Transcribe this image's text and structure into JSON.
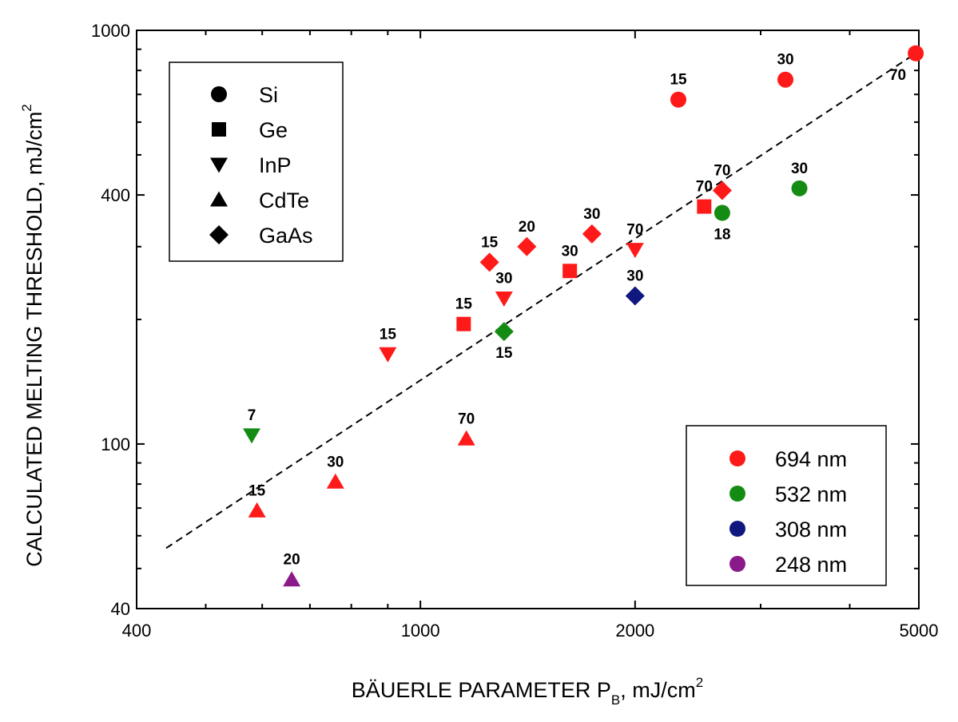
{
  "chart_data": {
    "type": "scatter",
    "xscale": "log",
    "yscale": "log",
    "xlim": [
      400,
      5000
    ],
    "ylim": [
      40,
      1000
    ],
    "xticks": [
      400,
      1000,
      2000,
      5000
    ],
    "yticks": [
      40,
      100,
      400,
      1000
    ],
    "xlabel_main": "BÄUERLE PARAMETER P",
    "xlabel_sub": "B",
    "xlabel_tail": ", mJ/cm",
    "xlabel_sup": "2",
    "ylabel_main": "CALCULATED MELTING THRESHOLD, mJ/cm",
    "ylabel_sup": "2",
    "material_legend": [
      {
        "label": "Si",
        "marker": "circle"
      },
      {
        "label": "Ge",
        "marker": "square"
      },
      {
        "label": "InP",
        "marker": "triangle-down"
      },
      {
        "label": "CdTe",
        "marker": "triangle-up"
      },
      {
        "label": "GaAs",
        "marker": "diamond"
      }
    ],
    "wavelength_legend": [
      {
        "label": "694 nm",
        "color": "#ff1a1a"
      },
      {
        "label": "532 nm",
        "color": "#148c14"
      },
      {
        "label": "308 nm",
        "color": "#101880"
      },
      {
        "label": "248 nm",
        "color": "#8a1a8a"
      }
    ],
    "points": [
      {
        "x": 4950,
        "y": 880,
        "marker": "circle",
        "color": "#ff1a1a",
        "label": "70",
        "label_pos": "below-left"
      },
      {
        "x": 3250,
        "y": 760,
        "marker": "circle",
        "color": "#ff1a1a",
        "label": "30",
        "label_pos": "above"
      },
      {
        "x": 2300,
        "y": 680,
        "marker": "circle",
        "color": "#ff1a1a",
        "label": "15",
        "label_pos": "above"
      },
      {
        "x": 3400,
        "y": 415,
        "marker": "circle",
        "color": "#148c14",
        "label": "30",
        "label_pos": "above"
      },
      {
        "x": 2650,
        "y": 362,
        "marker": "circle",
        "color": "#148c14",
        "label": "18",
        "label_pos": "below"
      },
      {
        "x": 2500,
        "y": 375,
        "marker": "square",
        "color": "#ff1a1a",
        "label": "70",
        "label_pos": "above"
      },
      {
        "x": 1620,
        "y": 262,
        "marker": "square",
        "color": "#ff1a1a",
        "label": "30",
        "label_pos": "above"
      },
      {
        "x": 1150,
        "y": 195,
        "marker": "square",
        "color": "#ff1a1a",
        "label": "15",
        "label_pos": "above"
      },
      {
        "x": 2000,
        "y": 295,
        "marker": "triangle-down",
        "color": "#ff1a1a",
        "label": "70",
        "label_pos": "above"
      },
      {
        "x": 1310,
        "y": 225,
        "marker": "triangle-down",
        "color": "#ff1a1a",
        "label": "30",
        "label_pos": "above"
      },
      {
        "x": 900,
        "y": 165,
        "marker": "triangle-down",
        "color": "#ff1a1a",
        "label": "15",
        "label_pos": "above"
      },
      {
        "x": 580,
        "y": 105,
        "marker": "triangle-down",
        "color": "#148c14",
        "label": "7",
        "label_pos": "above"
      },
      {
        "x": 1160,
        "y": 103,
        "marker": "triangle-up",
        "color": "#ff1a1a",
        "label": "70",
        "label_pos": "above"
      },
      {
        "x": 760,
        "y": 81,
        "marker": "triangle-up",
        "color": "#ff1a1a",
        "label": "30",
        "label_pos": "above"
      },
      {
        "x": 590,
        "y": 69,
        "marker": "triangle-up",
        "color": "#ff1a1a",
        "label": "15",
        "label_pos": "above"
      },
      {
        "x": 660,
        "y": 47,
        "marker": "triangle-up",
        "color": "#8a1a8a",
        "label": "20",
        "label_pos": "above"
      },
      {
        "x": 2650,
        "y": 410,
        "marker": "diamond",
        "color": "#ff1a1a",
        "label": "70",
        "label_pos": "above"
      },
      {
        "x": 1740,
        "y": 322,
        "marker": "diamond",
        "color": "#ff1a1a",
        "label": "30",
        "label_pos": "above"
      },
      {
        "x": 1410,
        "y": 300,
        "marker": "diamond",
        "color": "#ff1a1a",
        "label": "20",
        "label_pos": "above"
      },
      {
        "x": 1250,
        "y": 275,
        "marker": "diamond",
        "color": "#ff1a1a",
        "label": "15",
        "label_pos": "above"
      },
      {
        "x": 2000,
        "y": 228,
        "marker": "diamond",
        "color": "#101880",
        "label": "30",
        "label_pos": "above"
      },
      {
        "x": 1310,
        "y": 187,
        "marker": "diamond",
        "color": "#148c14",
        "label": "15",
        "label_pos": "below"
      }
    ],
    "fit_line": {
      "style": "dashed",
      "x": [
        440,
        4950
      ],
      "y": [
        56,
        880
      ]
    }
  }
}
